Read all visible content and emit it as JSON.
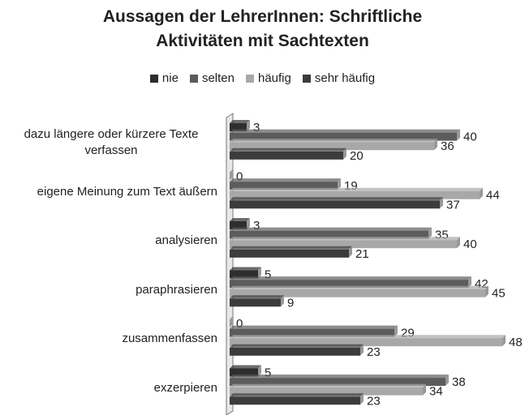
{
  "chart_data": {
    "type": "bar",
    "orientation": "horizontal",
    "title": "Aussagen der LehrerInnen: Schriftliche Aktivitäten mit Sachtexten",
    "categories": [
      "dazu längere oder kürzere Texte verfassen",
      "eigene Meinung zum Text äußern",
      "analysieren",
      "paraphrasieren",
      "zusammenfassen",
      "exzerpieren"
    ],
    "series": [
      {
        "name": "nie",
        "color": "#2e2e2e",
        "values": [
          3,
          0,
          3,
          5,
          0,
          5
        ]
      },
      {
        "name": "selten",
        "color": "#5c5c5c",
        "values": [
          40,
          19,
          35,
          42,
          29,
          38
        ]
      },
      {
        "name": "häufig",
        "color": "#a8a8a8",
        "values": [
          36,
          44,
          40,
          45,
          48,
          34
        ]
      },
      {
        "name": "sehr häufig",
        "color": "#3c3c3c",
        "values": [
          20,
          37,
          21,
          9,
          23,
          23
        ]
      }
    ],
    "xlim": [
      0,
      50
    ],
    "legend": "top"
  }
}
